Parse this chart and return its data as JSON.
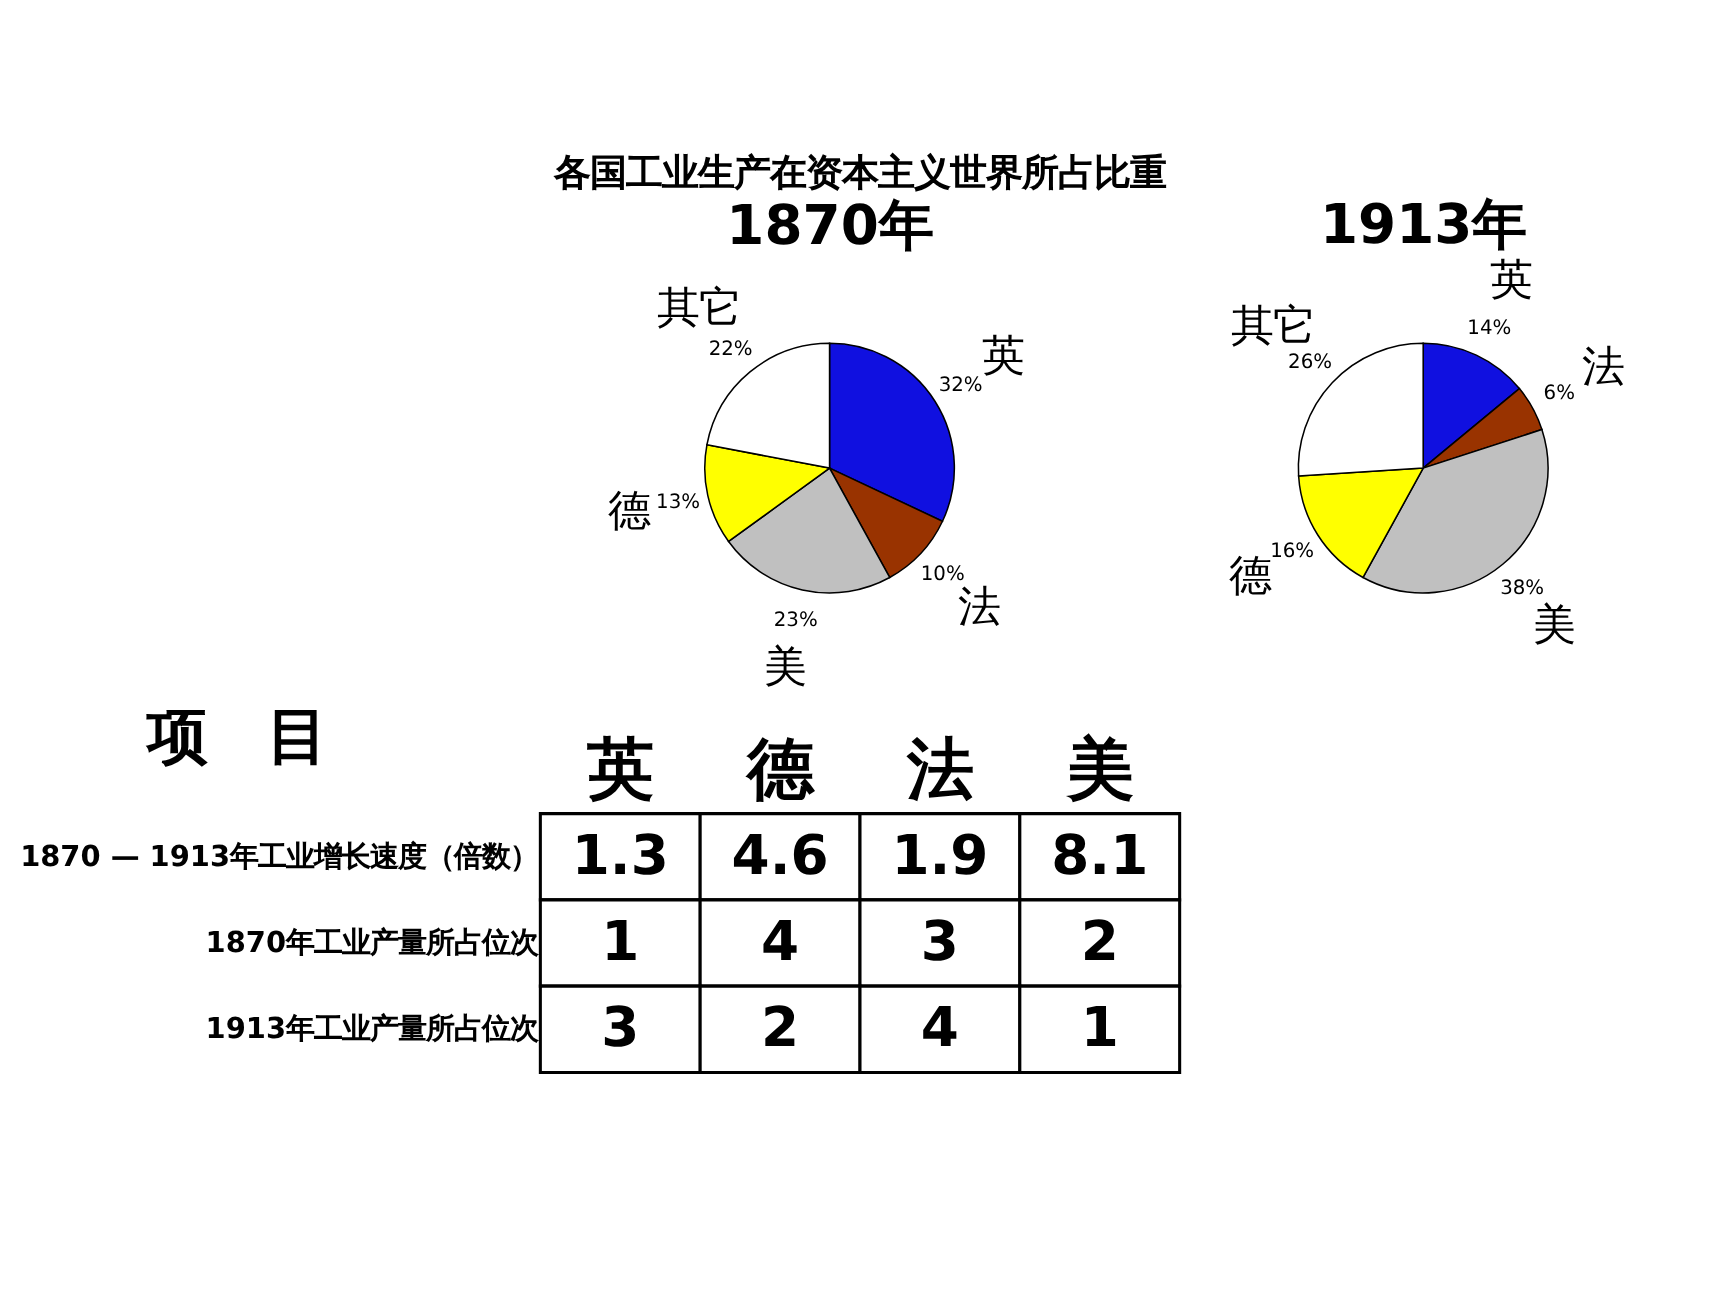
{
  "chart_data": [
    {
      "type": "pie",
      "title": "1870年",
      "annotations": [
        "各国工业生产在资本主义世界所占比重"
      ],
      "categories": [
        "英",
        "法",
        "美",
        "德",
        "其它"
      ],
      "values": [
        32,
        10,
        23,
        13,
        22
      ],
      "value_labels": [
        "32%",
        "10%",
        "23%",
        "13%",
        "22%"
      ],
      "colors": [
        "#1010e0",
        "#993300",
        "#c0c0c0",
        "#ffff00",
        "#ffffff"
      ]
    },
    {
      "type": "pie",
      "title": "1913年",
      "categories": [
        "英",
        "法",
        "美",
        "德",
        "其它"
      ],
      "values": [
        14,
        6,
        38,
        16,
        26
      ],
      "value_labels": [
        "14%",
        "6%",
        "38%",
        "16%",
        "26%"
      ],
      "colors": [
        "#1010e0",
        "#993300",
        "#c0c0c0",
        "#ffff00",
        "#ffffff"
      ]
    },
    {
      "type": "other",
      "ylabel": "项　目",
      "categories": [
        "英",
        "德",
        "法",
        "美"
      ],
      "y_categories": [
        "1870 — 1913年工业增长速度（倍数）",
        "1870年工业产量所占位次",
        "1913年工业产量所占位次"
      ],
      "cell_labels": [
        [
          "1.3",
          "4.6",
          "1.9",
          "8.1"
        ],
        [
          "1",
          "4",
          "3",
          "2"
        ],
        [
          "3",
          "2",
          "4",
          "1"
        ]
      ]
    }
  ]
}
